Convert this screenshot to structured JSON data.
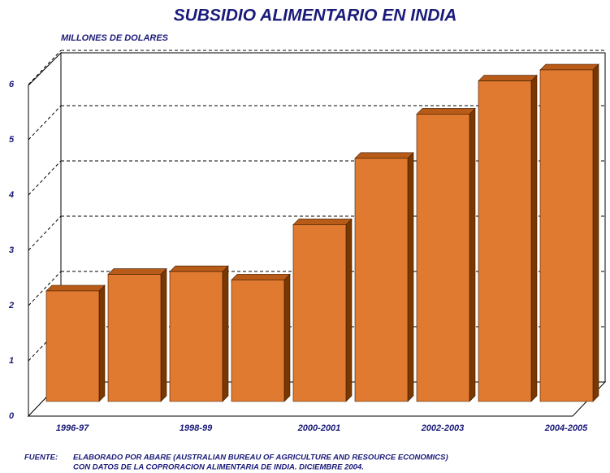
{
  "chart_data": {
    "type": "bar3d",
    "title": "SUBSIDIO ALIMENTARIO EN INDIA",
    "subtitle": "MILLONES DE DOLARES",
    "categories": [
      "1996-97",
      null,
      "1998-99",
      null,
      "2000-2001",
      null,
      "2002-2003",
      null,
      "2004-2005"
    ],
    "values": [
      2.0,
      2.3,
      2.35,
      2.2,
      3.2,
      4.4,
      5.2,
      5.8,
      6.0
    ],
    "color": "#e07a30",
    "ylim": [
      0,
      6
    ],
    "yticks": [
      0,
      1,
      2,
      3,
      4,
      5,
      6
    ],
    "grid": true,
    "source_label": "FUENTE:",
    "source_lines": [
      "ELABORADO POR ABARE (AUSTRALIAN BUREAU OF AGRICULTURE AND RESOURCE ECONOMICS)",
      "CON DATOS DE LA COPRORACION ALIMENTARIA DE INDIA. DICIEMBRE 2004."
    ]
  }
}
